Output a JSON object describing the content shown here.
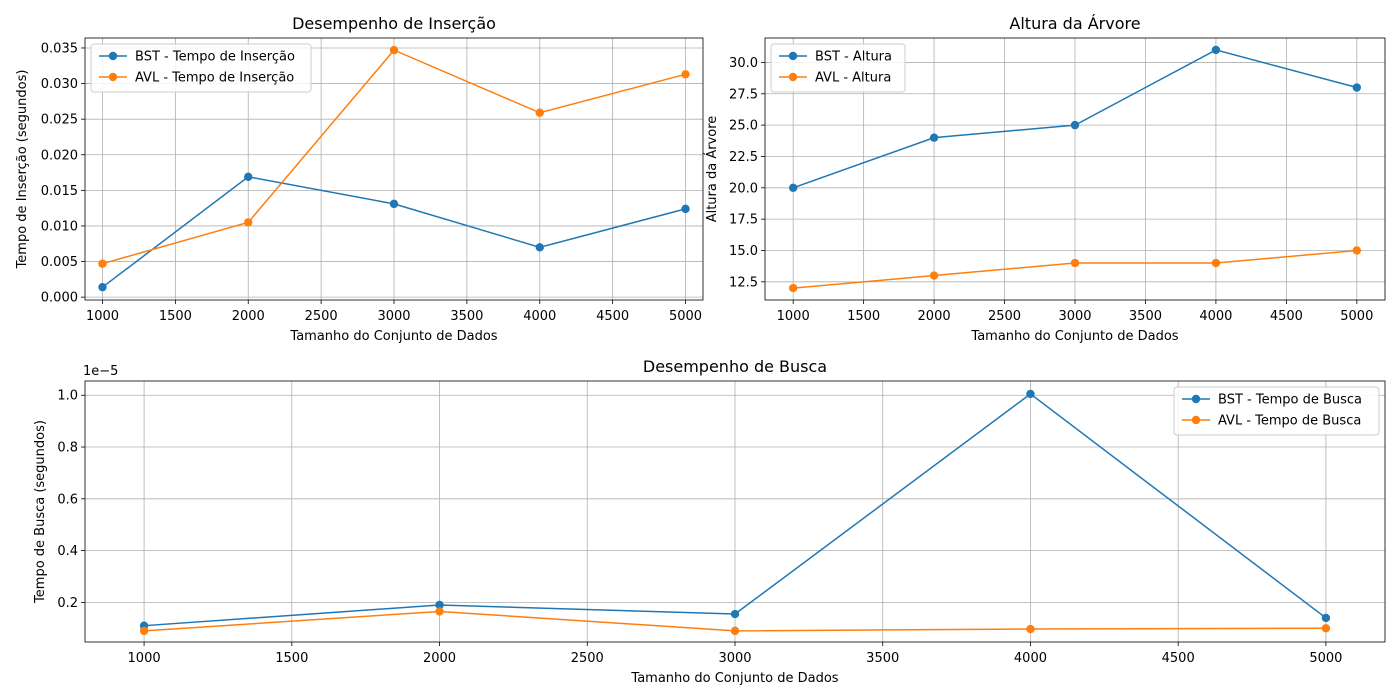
{
  "chart_data": [
    {
      "type": "line",
      "title": "Desempenho de Inserção",
      "xlabel": "Tamanho do Conjunto de Dados",
      "ylabel": "Tempo de Inserção (segundos)",
      "xlim": [
        880,
        5120
      ],
      "ylim": [
        -0.0004,
        0.0364
      ],
      "xticks": [
        1000,
        1500,
        2000,
        2500,
        3000,
        3500,
        4000,
        4500,
        5000
      ],
      "xtick_labels": [
        "1000",
        "1500",
        "2000",
        "2500",
        "3000",
        "3500",
        "4000",
        "4500",
        "5000"
      ],
      "yticks": [
        0,
        0.005,
        0.01,
        0.015,
        0.02,
        0.025,
        0.03,
        0.035
      ],
      "ytick_labels": [
        "0.000",
        "0.005",
        "0.010",
        "0.015",
        "0.020",
        "0.025",
        "0.030",
        "0.035"
      ],
      "grid": true,
      "legend": "upper left",
      "x": [
        1000,
        2000,
        3000,
        4000,
        5000
      ],
      "series": [
        {
          "name": "BST - Tempo de Inserção",
          "color": "#1f77b4",
          "values": [
            0.0014,
            0.0169,
            0.0131,
            0.007,
            0.0124
          ]
        },
        {
          "name": "AVL - Tempo de Inserção",
          "color": "#ff7f0e",
          "values": [
            0.0047,
            0.0105,
            0.0347,
            0.0259,
            0.0313
          ]
        }
      ]
    },
    {
      "type": "line",
      "title": "Altura da Árvore",
      "xlabel": "Tamanho do Conjunto de Dados",
      "ylabel": "Altura da Árvore",
      "xlim": [
        800,
        5200
      ],
      "ylim": [
        11.05,
        31.95
      ],
      "xticks": [
        1000,
        1500,
        2000,
        2500,
        3000,
        3500,
        4000,
        4500,
        5000
      ],
      "xtick_labels": [
        "1000",
        "1500",
        "2000",
        "2500",
        "3000",
        "3500",
        "4000",
        "4500",
        "5000"
      ],
      "yticks": [
        12.5,
        15,
        17.5,
        20,
        22.5,
        25,
        27.5,
        30
      ],
      "ytick_labels": [
        "12.5",
        "15.0",
        "17.5",
        "20.0",
        "22.5",
        "25.0",
        "27.5",
        "30.0"
      ],
      "grid": true,
      "legend": "upper left",
      "x": [
        1000,
        2000,
        3000,
        4000,
        5000
      ],
      "series": [
        {
          "name": "BST - Altura",
          "color": "#1f77b4",
          "values": [
            20,
            24,
            25,
            31,
            28
          ]
        },
        {
          "name": "AVL - Altura",
          "color": "#ff7f0e",
          "values": [
            12,
            13,
            14,
            14,
            15
          ]
        }
      ]
    },
    {
      "type": "line",
      "title": "Desempenho de Busca",
      "xlabel": "Tamanho do Conjunto de Dados",
      "ylabel": "Tempo de Busca (segundos)",
      "offset_label": "1e−5",
      "xlim": [
        800,
        5200
      ],
      "ylim": [
        0.047,
        1.055
      ],
      "xticks": [
        1000,
        1500,
        2000,
        2500,
        3000,
        3500,
        4000,
        4500,
        5000
      ],
      "xtick_labels": [
        "1000",
        "1500",
        "2000",
        "2500",
        "3000",
        "3500",
        "4000",
        "4500",
        "5000"
      ],
      "yticks": [
        0.2,
        0.4,
        0.6,
        0.8,
        1.0
      ],
      "ytick_labels": [
        "0.2",
        "0.4",
        "0.6",
        "0.8",
        "1.0"
      ],
      "grid": true,
      "legend": "upper right",
      "x": [
        1000,
        2000,
        3000,
        4000,
        5000
      ],
      "series": [
        {
          "name": "BST - Tempo de Busca",
          "color": "#1f77b4",
          "values": [
            0.11,
            0.19,
            0.155,
            1.005,
            0.14
          ]
        },
        {
          "name": "AVL - Tempo de Busca",
          "color": "#ff7f0e",
          "values": [
            0.09,
            0.165,
            0.09,
            0.097,
            0.1
          ]
        }
      ]
    }
  ]
}
